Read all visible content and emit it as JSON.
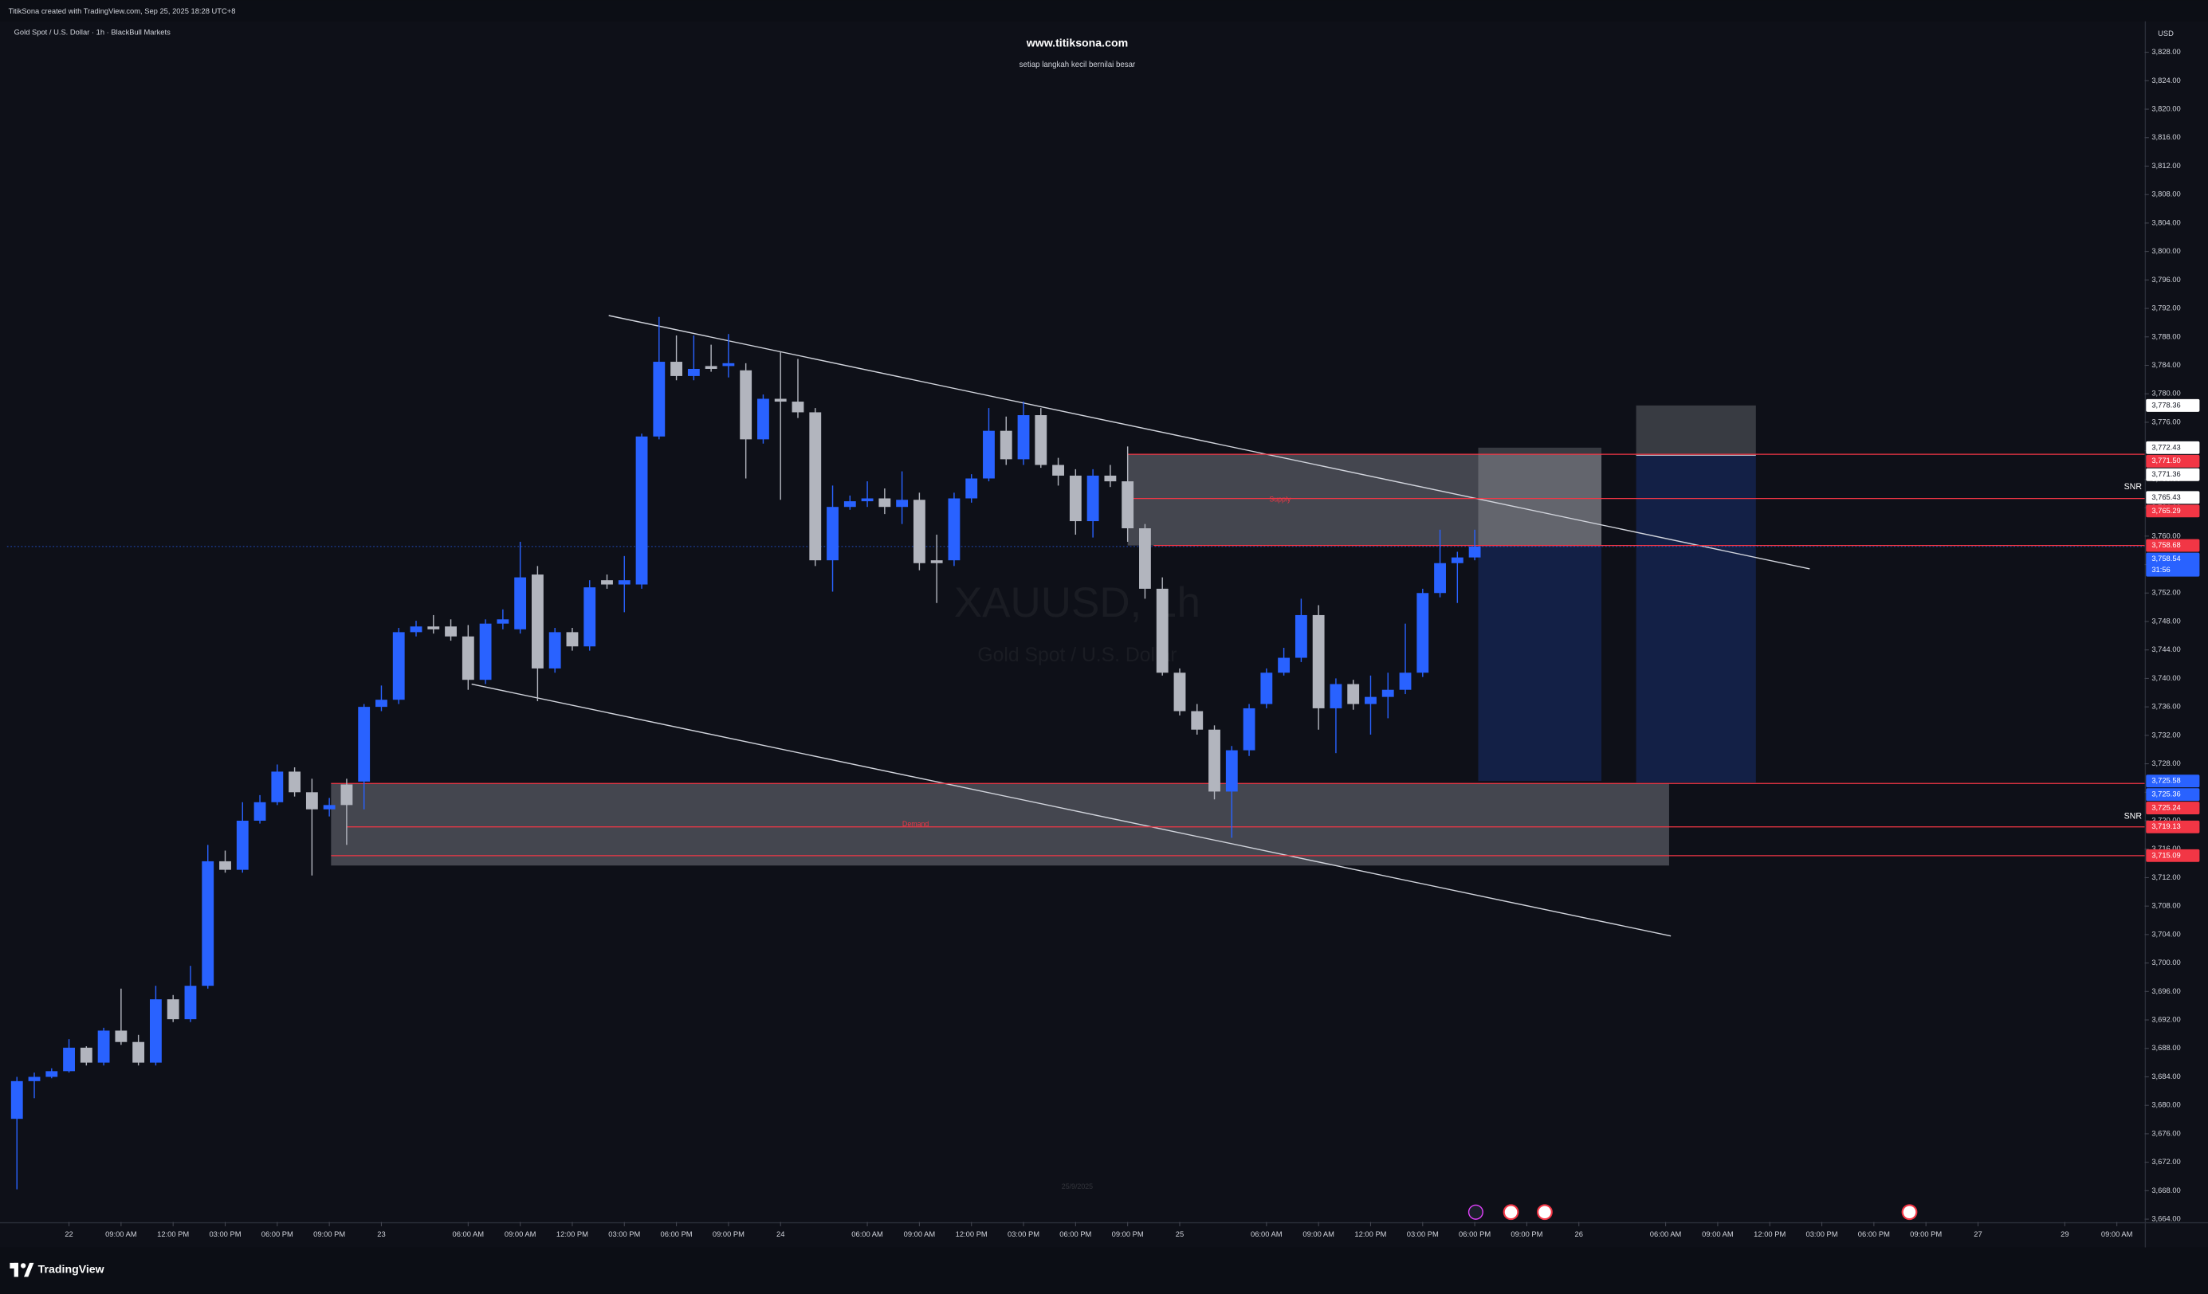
{
  "header": {
    "attribution": "TitikSona created with TradingView.com, Sep 25, 2025 18:28 UTC+8"
  },
  "footer": {
    "brand": "TradingView"
  },
  "chart_data": {
    "type": "candlestick",
    "title": "www.titiksona.com",
    "subtitle": "setiap langkah kecil bernilai besar",
    "symbol_legend": "Gold Spot / U.S. Dollar · 1h · BlackBull Markets",
    "watermark": "XAUUSD, 1h",
    "watermark_subtitle": "Gold Spot / U.S. Dollar",
    "date_note": "25/9/2025",
    "currency": "USD",
    "up_color": "#2962ff",
    "down_color": "#b2b5be",
    "open": [
      3678.1,
      3683.4,
      3684.0,
      3684.8,
      3688.1,
      3686.0,
      3690.5,
      3688.9,
      3686.0,
      3694.9,
      3692.1,
      3696.8,
      3714.3,
      3713.1,
      3720.0,
      3722.6,
      3726.9,
      3724.0,
      3721.6,
      3725.1,
      3725.5,
      3736.0,
      3737.0,
      3746.5,
      3747.3,
      3747.3,
      3745.9,
      3739.8,
      3747.7,
      3746.9,
      3754.6,
      3741.4,
      3746.5,
      3744.5,
      3753.8,
      3753.2,
      3753.2,
      3774.0,
      3784.5,
      3782.5,
      3783.9,
      3783.9,
      3783.3,
      3773.6,
      3779.3,
      3778.9,
      3777.4,
      3756.6,
      3764.1,
      3764.9,
      3765.3,
      3764.1,
      3765.1,
      3756.6,
      3756.6,
      3765.3,
      3768.1,
      3774.8,
      3770.8,
      3777.0,
      3770.0,
      3768.5,
      3762.1,
      3768.5,
      3767.7,
      3761.1,
      3752.6,
      3740.8,
      3735.4,
      3732.8,
      3724.1,
      3729.9,
      3736.4,
      3740.8,
      3742.9,
      3748.9,
      3735.8,
      3739.2,
      3736.4,
      3737.4,
      3738.4,
      3740.8,
      3752.0,
      3756.2,
      3757.0
    ],
    "high": [
      3684.0,
      3684.6,
      3685.2,
      3689.3,
      3688.3,
      3690.9,
      3696.4,
      3689.9,
      3696.8,
      3695.5,
      3699.6,
      3716.6,
      3715.8,
      3722.6,
      3723.6,
      3727.9,
      3727.5,
      3725.9,
      3723.2,
      3725.9,
      3736.4,
      3739.0,
      3747.1,
      3748.1,
      3748.9,
      3748.3,
      3747.5,
      3748.3,
      3749.7,
      3759.2,
      3755.8,
      3747.1,
      3747.1,
      3753.8,
      3754.6,
      3757.2,
      3774.4,
      3790.8,
      3788.2,
      3788.2,
      3786.9,
      3788.4,
      3784.3,
      3779.9,
      3785.9,
      3784.9,
      3778.0,
      3767.1,
      3765.7,
      3767.7,
      3766.7,
      3769.1,
      3766.1,
      3760.2,
      3766.1,
      3768.7,
      3778.0,
      3776.8,
      3778.9,
      3778.0,
      3771.0,
      3769.4,
      3769.4,
      3770.0,
      3772.6,
      3761.7,
      3754.2,
      3741.4,
      3736.4,
      3733.4,
      3730.5,
      3736.4,
      3741.4,
      3744.3,
      3751.2,
      3750.3,
      3740.0,
      3739.8,
      3740.4,
      3740.8,
      3747.7,
      3752.6,
      3760.9,
      3757.8,
      3760.9
    ],
    "low": [
      3668.2,
      3681.0,
      3683.8,
      3684.6,
      3685.6,
      3685.6,
      3688.5,
      3685.6,
      3685.6,
      3691.7,
      3691.7,
      3696.4,
      3712.7,
      3712.7,
      3719.6,
      3722.2,
      3723.4,
      3712.3,
      3720.6,
      3716.6,
      3721.6,
      3735.4,
      3736.4,
      3745.9,
      3746.3,
      3745.3,
      3738.4,
      3739.2,
      3746.9,
      3746.3,
      3736.8,
      3740.8,
      3743.9,
      3743.9,
      3752.6,
      3749.3,
      3752.6,
      3773.6,
      3781.9,
      3781.9,
      3783.1,
      3782.3,
      3768.1,
      3773.0,
      3765.1,
      3776.6,
      3755.8,
      3752.2,
      3763.7,
      3764.1,
      3763.1,
      3761.7,
      3755.2,
      3750.6,
      3755.8,
      3764.7,
      3767.7,
      3770.0,
      3770.0,
      3769.6,
      3767.1,
      3760.2,
      3759.8,
      3766.9,
      3759.2,
      3751.2,
      3740.4,
      3734.8,
      3732.1,
      3723.0,
      3717.6,
      3729.1,
      3735.8,
      3740.4,
      3742.3,
      3732.8,
      3729.5,
      3735.6,
      3732.1,
      3734.4,
      3737.8,
      3740.2,
      3751.4,
      3750.6,
      3756.6
    ],
    "close": [
      3683.4,
      3684.0,
      3684.8,
      3688.1,
      3686.0,
      3690.5,
      3688.9,
      3686.0,
      3694.9,
      3692.1,
      3696.8,
      3714.3,
      3713.1,
      3720.0,
      3722.6,
      3726.9,
      3724.0,
      3721.6,
      3722.2,
      3722.2,
      3736.0,
      3737.0,
      3746.5,
      3747.3,
      3746.9,
      3745.9,
      3739.8,
      3747.7,
      3748.3,
      3754.2,
      3741.4,
      3746.5,
      3744.5,
      3752.8,
      3753.2,
      3753.8,
      3774.0,
      3784.5,
      3782.5,
      3783.5,
      3783.5,
      3784.3,
      3773.6,
      3779.3,
      3778.9,
      3777.4,
      3756.6,
      3764.1,
      3764.9,
      3765.3,
      3764.1,
      3765.1,
      3756.2,
      3756.2,
      3765.3,
      3768.1,
      3774.8,
      3770.8,
      3777.0,
      3770.0,
      3768.5,
      3762.1,
      3768.5,
      3767.7,
      3761.1,
      3752.6,
      3740.8,
      3735.4,
      3732.8,
      3724.1,
      3729.9,
      3735.8,
      3740.8,
      3742.9,
      3748.9,
      3735.8,
      3739.2,
      3736.4,
      3737.4,
      3738.4,
      3740.8,
      3752.0,
      3756.2,
      3757.0,
      3758.54
    ],
    "xlim": [
      -0.57,
      122.6
    ],
    "xticks": [
      {
        "value": 3,
        "label": "22"
      },
      {
        "value": 6,
        "label": "09:00 AM"
      },
      {
        "value": 9,
        "label": "12:00 PM"
      },
      {
        "value": 12,
        "label": "03:00 PM"
      },
      {
        "value": 15,
        "label": "06:00 PM"
      },
      {
        "value": 18,
        "label": "09:00 PM"
      },
      {
        "value": 21,
        "label": "23"
      },
      {
        "value": 26,
        "label": "06:00 AM"
      },
      {
        "value": 29,
        "label": "09:00 AM"
      },
      {
        "value": 32,
        "label": "12:00 PM"
      },
      {
        "value": 35,
        "label": "03:00 PM"
      },
      {
        "value": 38,
        "label": "06:00 PM"
      },
      {
        "value": 41,
        "label": "09:00 PM"
      },
      {
        "value": 44,
        "label": "24"
      },
      {
        "value": 49,
        "label": "06:00 AM"
      },
      {
        "value": 52,
        "label": "09:00 AM"
      },
      {
        "value": 55,
        "label": "12:00 PM"
      },
      {
        "value": 58,
        "label": "03:00 PM"
      },
      {
        "value": 61,
        "label": "06:00 PM"
      },
      {
        "value": 64,
        "label": "09:00 PM"
      },
      {
        "value": 67,
        "label": "25"
      },
      {
        "value": 72,
        "label": "06:00 AM"
      },
      {
        "value": 75,
        "label": "09:00 AM"
      },
      {
        "value": 78,
        "label": "12:00 PM"
      },
      {
        "value": 81,
        "label": "03:00 PM"
      },
      {
        "value": 84,
        "label": "06:00 PM"
      },
      {
        "value": 87,
        "label": "09:00 PM"
      },
      {
        "value": 90,
        "label": "26"
      },
      {
        "value": 95,
        "label": "06:00 AM"
      },
      {
        "value": 98,
        "label": "09:00 AM"
      },
      {
        "value": 101,
        "label": "12:00 PM"
      },
      {
        "value": 104,
        "label": "03:00 PM"
      },
      {
        "value": 107,
        "label": "06:00 PM"
      },
      {
        "value": 110,
        "label": "09:00 PM"
      },
      {
        "value": 113,
        "label": "27"
      },
      {
        "value": 118,
        "label": "29"
      },
      {
        "value": 121,
        "label": "09:00 AM"
      }
    ],
    "ylim": [
      3663.6,
      3832.35
    ],
    "yticks": [
      {
        "value": 3664,
        "label": "3,664.00"
      },
      {
        "value": 3668,
        "label": "3,668.00"
      },
      {
        "value": 3672,
        "label": "3,672.00"
      },
      {
        "value": 3676,
        "label": "3,676.00"
      },
      {
        "value": 3680,
        "label": "3,680.00"
      },
      {
        "value": 3684,
        "label": "3,684.00"
      },
      {
        "value": 3688,
        "label": "3,688.00"
      },
      {
        "value": 3692,
        "label": "3,692.00"
      },
      {
        "value": 3696,
        "label": "3,696.00"
      },
      {
        "value": 3700,
        "label": "3,700.00"
      },
      {
        "value": 3704,
        "label": "3,704.00"
      },
      {
        "value": 3708,
        "label": "3,708.00"
      },
      {
        "value": 3712,
        "label": "3,712.00"
      },
      {
        "value": 3716,
        "label": "3,716.00"
      },
      {
        "value": 3720,
        "label": "3,720.00"
      },
      {
        "value": 3724,
        "label": "3,724.00"
      },
      {
        "value": 3728,
        "label": "3,728.00"
      },
      {
        "value": 3732,
        "label": "3,732.00"
      },
      {
        "value": 3736,
        "label": "3,736.00"
      },
      {
        "value": 3740,
        "label": "3,740.00"
      },
      {
        "value": 3744,
        "label": "3,744.00"
      },
      {
        "value": 3748,
        "label": "3,748.00"
      },
      {
        "value": 3752,
        "label": "3,752.00"
      },
      {
        "value": 3756,
        "label": "3,756.00"
      },
      {
        "value": 3760,
        "label": "3,760.00"
      },
      {
        "value": 3764,
        "label": "3,764.00"
      },
      {
        "value": 3768,
        "label": "3,768.00"
      },
      {
        "value": 3772,
        "label": "3,772.00"
      },
      {
        "value": 3776,
        "label": "3,776.00"
      },
      {
        "value": 3780,
        "label": "3,780.00"
      },
      {
        "value": 3784,
        "label": "3,784.00"
      },
      {
        "value": 3788,
        "label": "3,788.00"
      },
      {
        "value": 3792,
        "label": "3,792.00"
      },
      {
        "value": 3796,
        "label": "3,796.00"
      },
      {
        "value": 3800,
        "label": "3,800.00"
      },
      {
        "value": 3804,
        "label": "3,804.00"
      },
      {
        "value": 3808,
        "label": "3,808.00"
      },
      {
        "value": 3812,
        "label": "3,812.00"
      },
      {
        "value": 3816,
        "label": "3,816.00"
      },
      {
        "value": 3820,
        "label": "3,820.00"
      },
      {
        "value": 3824,
        "label": "3,824.00"
      },
      {
        "value": 3828,
        "label": "3,828.00"
      }
    ],
    "price_lines": [
      {
        "value": 3778.36,
        "label": "3,778.36",
        "color": "#ffffff",
        "text_color": "#131722"
      },
      {
        "value": 3772.43,
        "label": "3,772.43",
        "color": "#ffffff",
        "text_color": "#131722"
      },
      {
        "value": 3771.5,
        "label": "3,771.50",
        "color": "#f23645",
        "text_color": "#ffffff",
        "from": 64
      },
      {
        "value": 3771.36,
        "label": "3,771.36",
        "color": "#ffffff",
        "text_color": "#131722"
      },
      {
        "value": 3765.43,
        "label": "3,765.43",
        "color": "#ffffff",
        "text_color": "#131722"
      },
      {
        "value": 3765.29,
        "label": "3,765.29",
        "color": "#f23645",
        "text_color": "#ffffff",
        "from": 64
      },
      {
        "value": 3758.68,
        "label": "3,758.68",
        "color": "#f23645",
        "text_color": "#ffffff",
        "from": 65.5
      },
      {
        "value": 3758.54,
        "label": "3,758.54",
        "color": "#2962ff",
        "text_color": "#ffffff",
        "line": "dotted"
      },
      {
        "value": 3725.58,
        "label": "3,725.58",
        "color": "#2962ff",
        "text_color": "#ffffff"
      },
      {
        "value": 3725.36,
        "label": "3,725.36",
        "color": "#2962ff",
        "text_color": "#ffffff"
      },
      {
        "value": 3725.24,
        "label": "3,725.24",
        "color": "#f23645",
        "text_color": "#ffffff",
        "from": 18.1
      },
      {
        "value": 3719.13,
        "label": "3,719.13",
        "color": "#f23645",
        "text_color": "#ffffff",
        "from": 19
      },
      {
        "value": 3715.09,
        "label": "3,715.09",
        "color": "#f23645",
        "text_color": "#ffffff",
        "from": 18.1
      }
    ],
    "countdown": "31:56",
    "zones": [
      {
        "label": "Supply",
        "start": 64,
        "end": 91.3,
        "top": 3771.5,
        "bottom": 3758.68
      },
      {
        "label": "Demand",
        "start": 18.1,
        "end": 95.2,
        "top": 3725.24,
        "bottom": 3713.7
      }
    ],
    "positions": [
      {
        "start": 84.2,
        "end": 91.3,
        "top": 3772.43,
        "entry": 3758.68,
        "bottom": 3725.58
      },
      {
        "start": 93.3,
        "end": 100.2,
        "top": 3778.36,
        "entry": 3771.36,
        "bottom": 3725.36
      }
    ],
    "trendlines": [
      {
        "x1": 34.1,
        "y1": 3791.0,
        "x2": 103.3,
        "y2": 3755.4
      },
      {
        "x1": 26.2,
        "y1": 3739.2,
        "x2": 95.3,
        "y2": 3703.8
      }
    ],
    "annotations": [
      {
        "text": "SNR",
        "price": 3766.9
      },
      {
        "text": "SNR",
        "price": 3720.6
      }
    ]
  }
}
